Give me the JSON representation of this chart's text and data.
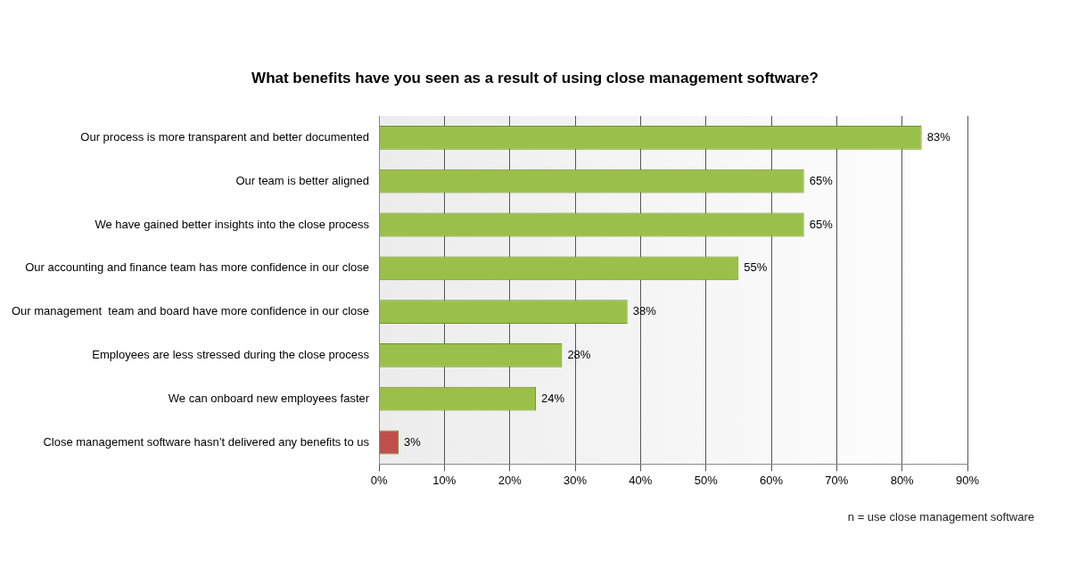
{
  "chart_data": {
    "type": "bar",
    "orientation": "horizontal",
    "title": "What benefits have you seen as a result of using close management software?",
    "categories": [
      "Our process is more transparent and better documented",
      "Our team is better aligned",
      "We have gained better insights into the close process",
      "Our accounting and finance team has more confidence in our close",
      "Our management  team and board have more confidence in our close",
      "Employees are less stressed during the close process",
      "We can onboard new employees faster",
      "Close management software hasn’t delivered any benefits to us"
    ],
    "values": [
      83,
      65,
      65,
      55,
      38,
      28,
      24,
      3
    ],
    "colors": [
      "#9bc04a",
      "#9bc04a",
      "#9bc04a",
      "#9bc04a",
      "#9bc04a",
      "#9bc04a",
      "#9bc04a",
      "#c0504d"
    ],
    "value_labels": [
      "83%",
      "65%",
      "65%",
      "55%",
      "38%",
      "28%",
      "24%",
      "3%"
    ],
    "xlim": [
      0,
      90
    ],
    "xticks": [
      {
        "value": 0,
        "label": "0%"
      },
      {
        "value": 10,
        "label": "10%"
      },
      {
        "value": 20,
        "label": "20%"
      },
      {
        "value": 30,
        "label": "30%"
      },
      {
        "value": 40,
        "label": "40%"
      },
      {
        "value": 50,
        "label": "50%"
      },
      {
        "value": 60,
        "label": "60%"
      },
      {
        "value": 70,
        "label": "70%"
      },
      {
        "value": 80,
        "label": "80%"
      },
      {
        "value": 90,
        "label": "90%"
      }
    ],
    "grid": "x",
    "legend": false,
    "annotations": [
      "n = use close management software"
    ]
  }
}
